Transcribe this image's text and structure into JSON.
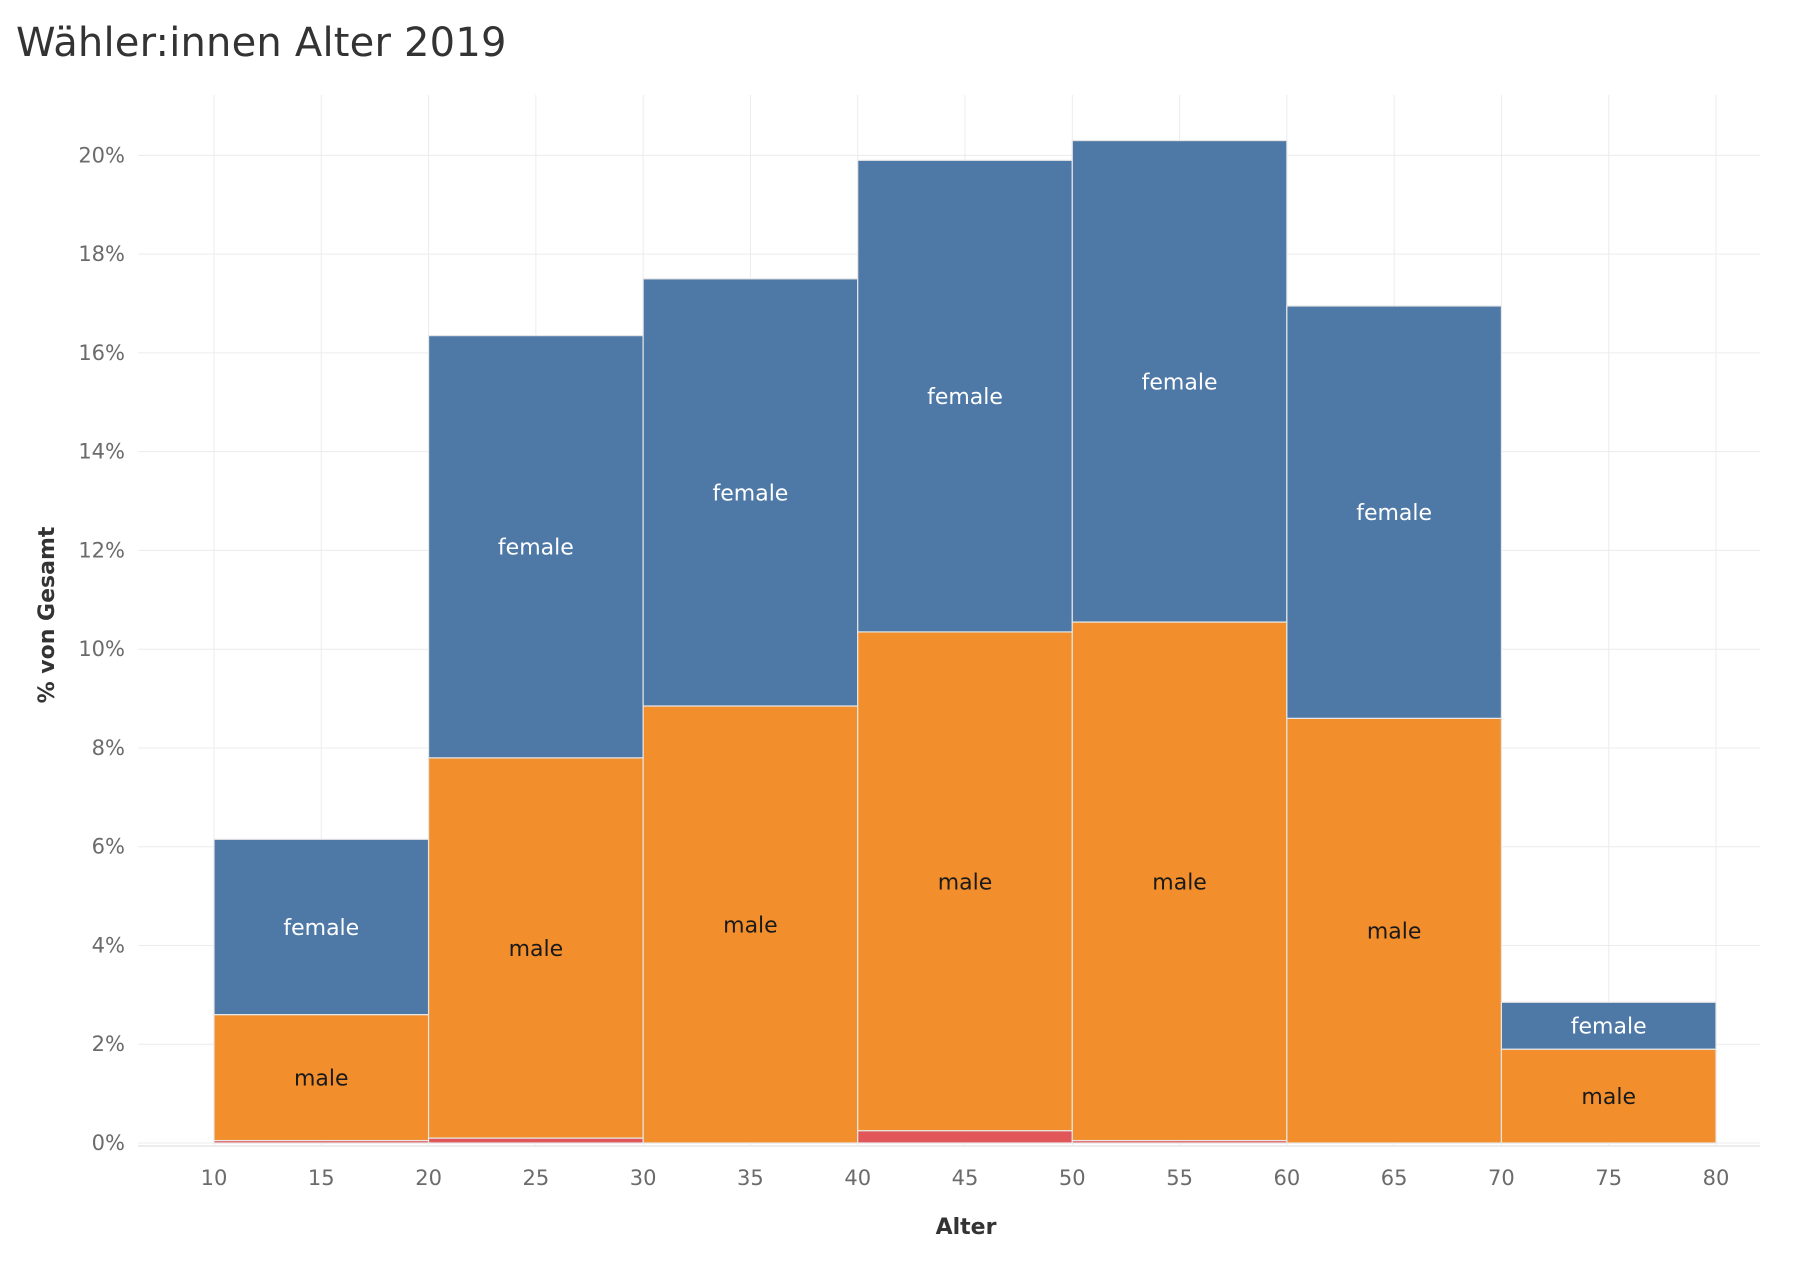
{
  "title": "Wähler:innen Alter 2019",
  "chart_data": {
    "type": "bar",
    "title": "Wähler:innen Alter 2019",
    "xlabel": "Alter",
    "ylabel": "% von Gesamt",
    "x_ticks": [
      "10",
      "15",
      "20",
      "25",
      "30",
      "35",
      "40",
      "45",
      "50",
      "55",
      "60",
      "65",
      "70",
      "75",
      "80"
    ],
    "y_ticks": [
      "0%",
      "2%",
      "4%",
      "6%",
      "8%",
      "10%",
      "12%",
      "14%",
      "16%",
      "18%",
      "20%"
    ],
    "xlim": [
      10,
      80
    ],
    "ylim": [
      0,
      21
    ],
    "grid": true,
    "bins": [
      {
        "from": 10,
        "to": 20
      },
      {
        "from": 20,
        "to": 30
      },
      {
        "from": 30,
        "to": 40
      },
      {
        "from": 40,
        "to": 50
      },
      {
        "from": 50,
        "to": 60
      },
      {
        "from": 60,
        "to": 70
      },
      {
        "from": 70,
        "to": 80
      }
    ],
    "series": [
      {
        "label": "",
        "color": "#e15759",
        "values": [
          0.05,
          0.1,
          0.0,
          0.25,
          0.05,
          0.0,
          0.0
        ]
      },
      {
        "label": "male",
        "color": "#f28e2b",
        "values": [
          2.55,
          7.7,
          8.85,
          10.1,
          10.5,
          8.6,
          1.9
        ]
      },
      {
        "label": "female",
        "color": "#4e79a7",
        "values": [
          3.55,
          8.55,
          8.65,
          9.55,
          9.75,
          8.35,
          0.95
        ]
      }
    ]
  }
}
